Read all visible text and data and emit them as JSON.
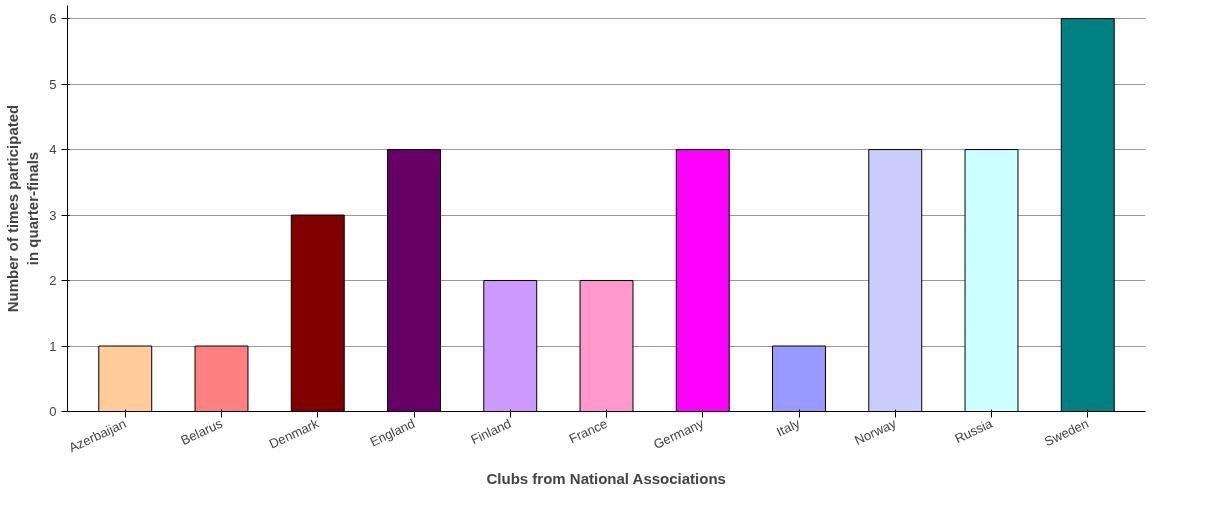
{
  "chart_data": {
    "type": "bar",
    "xlabel": "Clubs from National Associations",
    "ylabel": "Number of times participated\nin quarter-finals",
    "categories": [
      "Azerbaijan",
      "Belarus",
      "Denmark",
      "England",
      "Finland",
      "France",
      "Germany",
      "Italy",
      "Norway",
      "Russia",
      "Sweden"
    ],
    "values": [
      1,
      1,
      3,
      4,
      2,
      2,
      4,
      1,
      4,
      4,
      6
    ],
    "colors": [
      "#ffcc99",
      "#ff8080",
      "#800000",
      "#660066",
      "#cc99ff",
      "#ff99cc",
      "#ff00ff",
      "#9999ff",
      "#ccccff",
      "#ccffff",
      "#008080"
    ],
    "ylim": [
      0,
      6.2
    ],
    "yticks": [
      0,
      1,
      2,
      3,
      4,
      5,
      6
    ],
    "grid": "y"
  }
}
